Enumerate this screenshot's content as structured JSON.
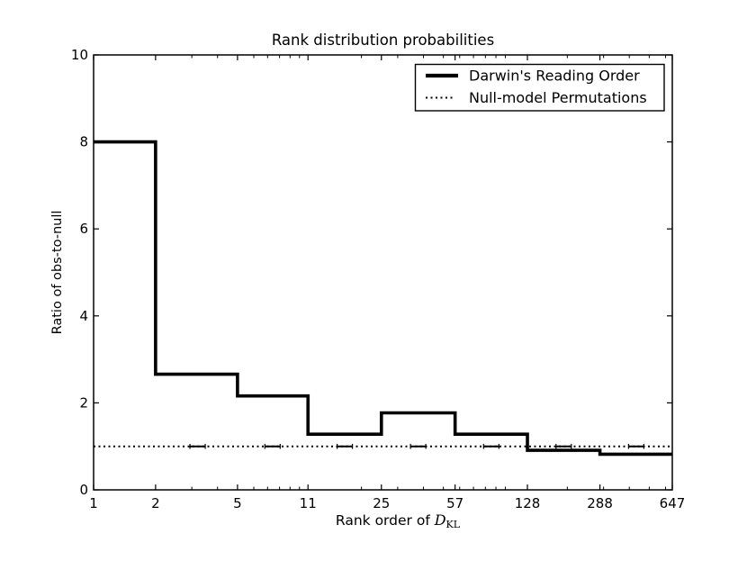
{
  "chart_data": {
    "type": "step",
    "title": "Rank distribution probabilities",
    "ylabel": "Ratio of obs-to-null",
    "xlabel": {
      "prefix": "Rank order of ",
      "symbol": "D",
      "subscript": "KL"
    },
    "x_scale": "log",
    "xlim": [
      1,
      647
    ],
    "ylim": [
      0,
      10
    ],
    "yticks": [
      0,
      2,
      4,
      6,
      8,
      10
    ],
    "xticks": [
      1,
      2,
      5,
      11,
      25,
      57,
      128,
      288,
      647
    ],
    "x_minor_ticks": [
      3,
      4,
      6,
      7,
      8,
      9,
      10,
      20,
      30,
      40,
      50,
      60,
      70,
      80,
      90,
      100,
      200,
      300,
      400,
      500,
      600
    ],
    "grid": false,
    "series": [
      {
        "name": "Darwin's Reading Order",
        "style": "solid-thick",
        "bin_edges": [
          1,
          2,
          5,
          11,
          25,
          57,
          128,
          288,
          647
        ],
        "values": [
          8.0,
          2.66,
          2.16,
          1.28,
          1.77,
          1.28,
          0.91,
          0.82
        ]
      },
      {
        "name": "Null-model Permutations",
        "style": "dotted",
        "value": 1.0,
        "error_mark_x": [
          3.2,
          7.4,
          16.6,
          37.7,
          85.4,
          192,
          432
        ]
      }
    ],
    "legend": {
      "position": "upper-right",
      "entries": [
        "Darwin's Reading Order",
        "Null-model Permutations"
      ]
    },
    "colors": {
      "line": "#000000",
      "background": "#ffffff"
    }
  }
}
